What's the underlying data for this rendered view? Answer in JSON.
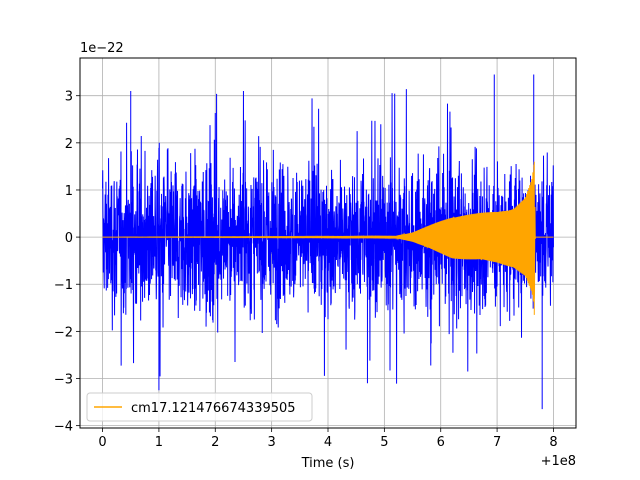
{
  "chart_data": {
    "type": "line",
    "title": "",
    "xlabel": "Time (s)",
    "ylabel": "",
    "x_offset_label": "+1e8",
    "y_scale_label": "1e−22",
    "xlim": [
      -0.4,
      8.4
    ],
    "ylim": [
      -4.05,
      3.8
    ],
    "x_ticks": [
      0,
      1,
      2,
      3,
      4,
      5,
      6,
      7,
      8
    ],
    "x_tick_labels": [
      "0",
      "1",
      "2",
      "3",
      "4",
      "5",
      "6",
      "7",
      "8"
    ],
    "y_ticks": [
      -4,
      -3,
      -2,
      -1,
      0,
      1,
      2,
      3
    ],
    "y_tick_labels": [
      "−4",
      "−3",
      "−2",
      "−1",
      "0",
      "1",
      "2",
      "3"
    ],
    "grid": true,
    "legend_position": "lower-left",
    "series": [
      {
        "name": "",
        "color": "#0000ff",
        "kind": "noise",
        "x_range": [
          0,
          8
        ],
        "typical_envelope": [
          -2.0,
          2.0
        ],
        "max": 3.45,
        "min": -3.65
      },
      {
        "name": "cm17.121476674339505",
        "color": "#ffa500",
        "kind": "chirp",
        "x_range": [
          0,
          8
        ],
        "envelope_points": [
          {
            "x": 0.0,
            "amp": 0.0
          },
          {
            "x": 5.2,
            "amp": 0.02
          },
          {
            "x": 5.5,
            "amp": 0.1
          },
          {
            "x": 5.9,
            "amp": 0.3
          },
          {
            "x": 6.2,
            "amp": 0.45
          },
          {
            "x": 6.6,
            "amp": 0.5
          },
          {
            "x": 7.0,
            "amp": 0.55
          },
          {
            "x": 7.3,
            "amp": 0.65
          },
          {
            "x": 7.5,
            "amp": 0.85
          },
          {
            "x": 7.62,
            "amp": 1.25
          },
          {
            "x": 7.66,
            "amp": 1.6
          },
          {
            "x": 7.68,
            "amp": 0.0
          },
          {
            "x": 8.0,
            "amp": 0.0
          }
        ]
      }
    ]
  }
}
